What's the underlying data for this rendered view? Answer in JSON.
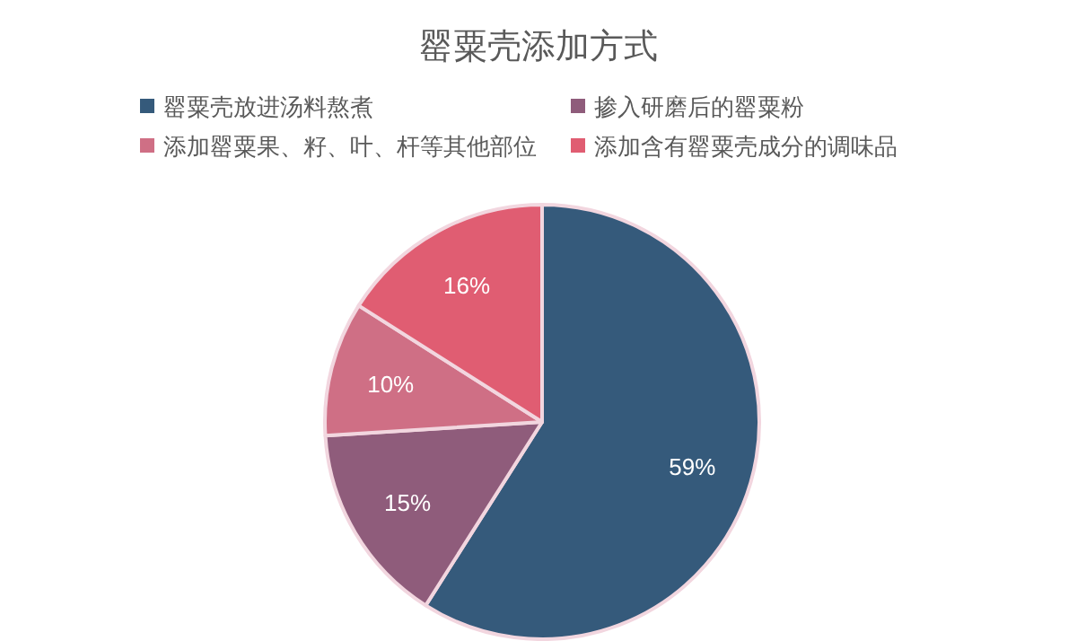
{
  "chart_data": {
    "type": "pie",
    "title": "罂粟壳添加方式",
    "categories": [
      "罂粟壳放进汤料熬煮",
      "掺入研磨后的罂粟粉",
      "添加罂粟果、籽、叶、杆等其他部位",
      "添加含有罂粟壳成分的调味品"
    ],
    "values": [
      59,
      15,
      10,
      16
    ],
    "value_labels": [
      "59%",
      "15%",
      "10%",
      "16%"
    ],
    "colors": [
      "#355a7b",
      "#8f5c7b",
      "#cf6f85",
      "#e05d72"
    ],
    "legend": "top"
  }
}
